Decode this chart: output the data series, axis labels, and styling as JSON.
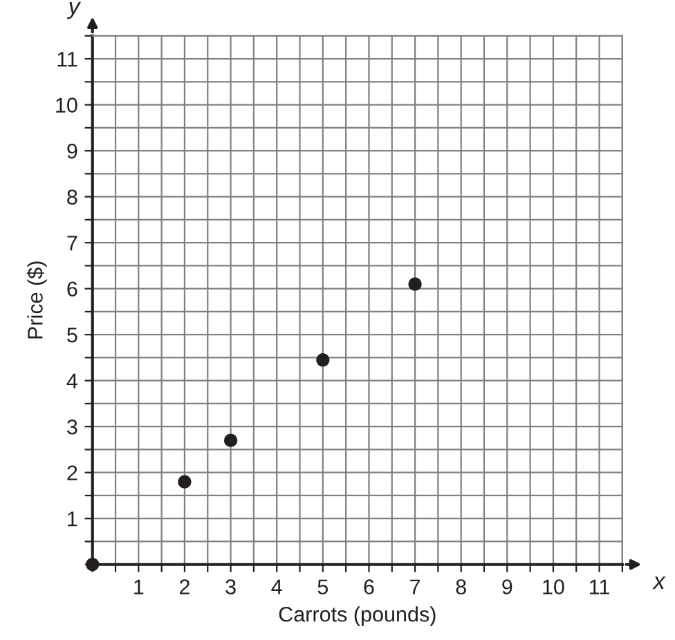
{
  "chart_data": {
    "type": "scatter",
    "xlabel": "Carrots (pounds)",
    "ylabel": "Price ($)",
    "x": [
      0,
      2,
      3,
      5,
      7
    ],
    "values": [
      0,
      1.8,
      2.7,
      4.45,
      6.1
    ],
    "color": "#231f20",
    "marker": "circle",
    "xlim": [
      0,
      11.5
    ],
    "ylim": [
      0,
      11.5
    ],
    "xticks": [
      {
        "value": 0,
        "label": null
      },
      {
        "value": 0.5,
        "label": null
      },
      1,
      {
        "value": 1.5,
        "label": null
      },
      2,
      {
        "value": 2.5,
        "label": null
      },
      3,
      {
        "value": 3.5,
        "label": null
      },
      4,
      {
        "value": 4.5,
        "label": null
      },
      5,
      {
        "value": 5.5,
        "label": null
      },
      6,
      {
        "value": 6.5,
        "label": null
      },
      7,
      {
        "value": 7.5,
        "label": null
      },
      8,
      {
        "value": 8.5,
        "label": null
      },
      9,
      {
        "value": 9.5,
        "label": null
      },
      10,
      {
        "value": 10.5,
        "label": null
      },
      11,
      {
        "value": 11.5,
        "label": null
      }
    ],
    "yticks": [
      {
        "value": 0,
        "label": null
      },
      {
        "value": 0.5,
        "label": null
      },
      1,
      {
        "value": 1.5,
        "label": null
      },
      2,
      {
        "value": 2.5,
        "label": null
      },
      3,
      {
        "value": 3.5,
        "label": null
      },
      4,
      {
        "value": 4.5,
        "label": null
      },
      5,
      {
        "value": 5.5,
        "label": null
      },
      6,
      {
        "value": 6.5,
        "label": null
      },
      7,
      {
        "value": 7.5,
        "label": null
      },
      8,
      {
        "value": 8.5,
        "label": null
      },
      9,
      {
        "value": 9.5,
        "label": null
      },
      10,
      {
        "value": 10.5,
        "label": null
      },
      11,
      {
        "value": 11.5,
        "label": null
      }
    ],
    "grid": true,
    "annotations": [
      "x",
      "y"
    ]
  }
}
